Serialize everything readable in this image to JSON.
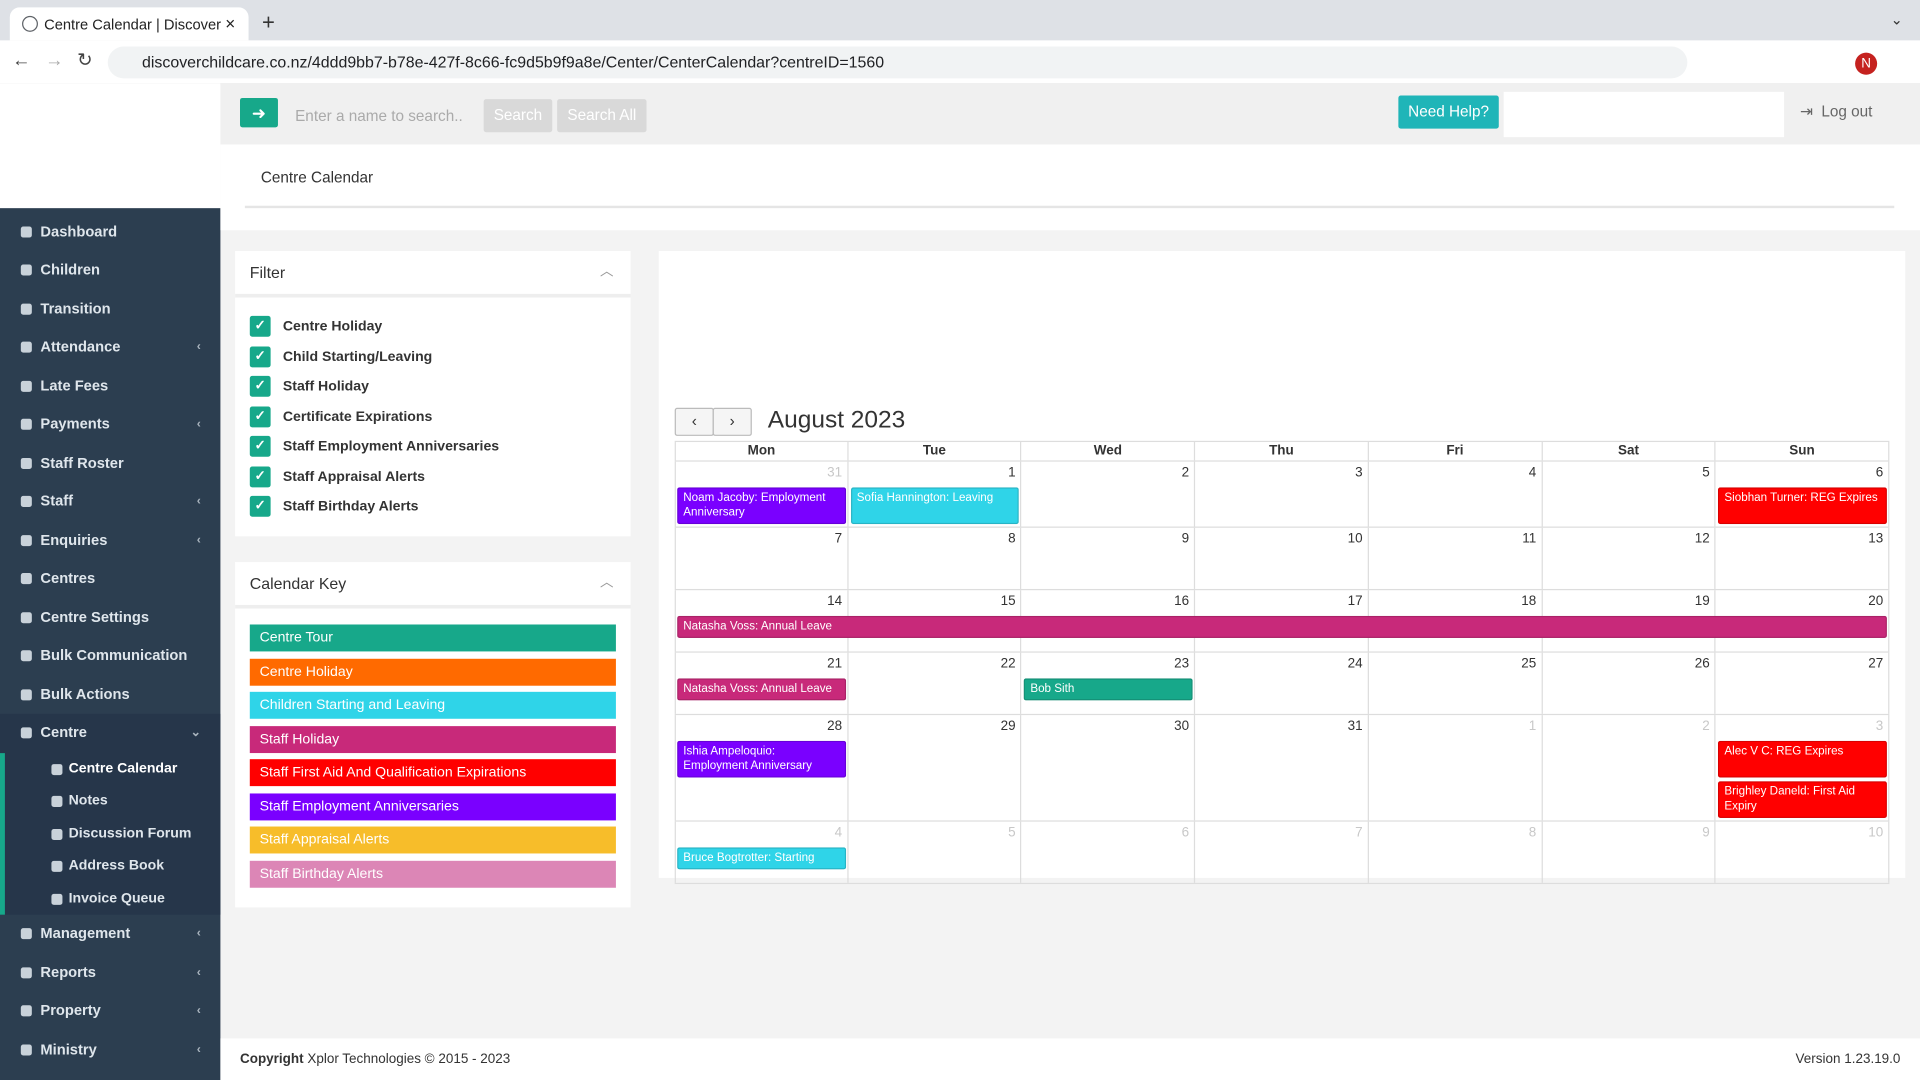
{
  "browser": {
    "tab_title": "Centre Calendar | Discover",
    "url": "discoverchildcare.co.nz/4ddd9bb7-b78e-427f-8c66-fc9d5b9f9a8e/Center/CenterCalendar?centreID=1560",
    "profile": "N"
  },
  "header": {
    "search_placeholder": "Enter a name to search..",
    "search": "Search",
    "search_all": "Search All",
    "help": "Need Help?",
    "logout": "Log out"
  },
  "sidebar": [
    {
      "label": "Dashboard"
    },
    {
      "label": "Children"
    },
    {
      "label": "Transition"
    },
    {
      "label": "Attendance",
      "expandable": true
    },
    {
      "label": "Late Fees"
    },
    {
      "label": "Payments",
      "expandable": true
    },
    {
      "label": "Staff Roster"
    },
    {
      "label": "Staff",
      "expandable": true
    },
    {
      "label": "Enquiries",
      "expandable": true
    },
    {
      "label": "Centres"
    },
    {
      "label": "Centre Settings"
    },
    {
      "label": "Bulk Communication"
    },
    {
      "label": "Bulk Actions"
    },
    {
      "label": "Centre",
      "expandable": true,
      "open": true,
      "children": [
        {
          "label": "Centre Calendar",
          "active": true
        },
        {
          "label": "Notes"
        },
        {
          "label": "Discussion Forum"
        },
        {
          "label": "Address Book"
        },
        {
          "label": "Invoice Queue"
        }
      ]
    },
    {
      "label": "Management",
      "expandable": true
    },
    {
      "label": "Reports",
      "expandable": true
    },
    {
      "label": "Property",
      "expandable": true
    },
    {
      "label": "Ministry",
      "expandable": true
    }
  ],
  "page_title": "Centre Calendar",
  "filter": {
    "title": "Filter",
    "items": [
      "Centre Holiday",
      "Child Starting/Leaving",
      "Staff Holiday",
      "Certificate Expirations",
      "Staff Employment Anniversaries",
      "Staff Appraisal Alerts",
      "Staff Birthday Alerts"
    ]
  },
  "calendar_key": {
    "title": "Calendar Key",
    "items": [
      {
        "label": "Centre Tour",
        "color": "#17a88a"
      },
      {
        "label": "Centre Holiday",
        "color": "#ff6a00"
      },
      {
        "label": "Children Starting and Leaving",
        "color": "#2fd4e8"
      },
      {
        "label": "Staff Holiday",
        "color": "#c8297a"
      },
      {
        "label": "Staff First Aid And Qualification Expirations",
        "color": "#ff0000"
      },
      {
        "label": "Staff Employment Anniversaries",
        "color": "#7a00ff"
      },
      {
        "label": "Staff Appraisal Alerts",
        "color": "#f7bd2a"
      },
      {
        "label": "Staff Birthday Alerts",
        "color": "#dc86b6"
      }
    ]
  },
  "calendar": {
    "month": "August 2023",
    "weekdays": [
      "Mon",
      "Tue",
      "Wed",
      "Thu",
      "Fri",
      "Sat",
      "Sun"
    ],
    "weeks": [
      [
        {
          "n": 31,
          "muted": true,
          "events": [
            {
              "title": "Noam Jacoby: Employment Anniversary",
              "color": "#7a00ff"
            }
          ]
        },
        {
          "n": 1,
          "events": [
            {
              "title": "Sofia Hannington: Leaving",
              "color": "#2fd4e8"
            }
          ]
        },
        {
          "n": 2
        },
        {
          "n": 3
        },
        {
          "n": 4
        },
        {
          "n": 5
        },
        {
          "n": 6,
          "events": [
            {
              "title": "Siobhan Turner: REG Expires",
              "color": "#ff0000"
            }
          ]
        }
      ],
      [
        {
          "n": 7
        },
        {
          "n": 8
        },
        {
          "n": 9
        },
        {
          "n": 10
        },
        {
          "n": 11
        },
        {
          "n": 12
        },
        {
          "n": 13
        }
      ],
      [
        {
          "n": 14,
          "events": [
            {
              "title": "Natasha Voss: Annual Leave",
              "color": "#c8297a",
              "span": 7
            }
          ]
        },
        {
          "n": 15
        },
        {
          "n": 16
        },
        {
          "n": 17
        },
        {
          "n": 18
        },
        {
          "n": 19
        },
        {
          "n": 20
        }
      ],
      [
        {
          "n": 21,
          "events": [
            {
              "title": "Natasha Voss: Annual Leave",
              "color": "#c8297a"
            }
          ]
        },
        {
          "n": 22
        },
        {
          "n": 23,
          "events": [
            {
              "title": "Bob Sith",
              "color": "#17a88a"
            }
          ]
        },
        {
          "n": 24
        },
        {
          "n": 25
        },
        {
          "n": 26
        },
        {
          "n": 27
        }
      ],
      [
        {
          "n": 28,
          "events": [
            {
              "title": "Ishia Ampeloquio: Employment Anniversary",
              "color": "#7a00ff"
            }
          ]
        },
        {
          "n": 29
        },
        {
          "n": 30
        },
        {
          "n": 31
        },
        {
          "n": 1,
          "muted": true
        },
        {
          "n": 2,
          "muted": true
        },
        {
          "n": 3,
          "muted": true,
          "events": [
            {
              "title": "Alec V C: REG Expires",
              "color": "#ff0000"
            },
            {
              "title": "Brighley Daneld: First Aid Expiry",
              "color": "#ff0000"
            }
          ]
        }
      ],
      [
        {
          "n": 4,
          "muted": true,
          "events": [
            {
              "title": "Bruce Bogtrotter: Starting",
              "color": "#2fd4e8"
            }
          ]
        },
        {
          "n": 5,
          "muted": true
        },
        {
          "n": 6,
          "muted": true
        },
        {
          "n": 7,
          "muted": true
        },
        {
          "n": 8,
          "muted": true
        },
        {
          "n": 9,
          "muted": true
        },
        {
          "n": 10,
          "muted": true
        }
      ]
    ]
  },
  "footer": {
    "copyright_label": "Copyright",
    "copyright_text": "Xplor Technologies © 2015 - 2023",
    "version": "Version 1.23.19.0"
  }
}
